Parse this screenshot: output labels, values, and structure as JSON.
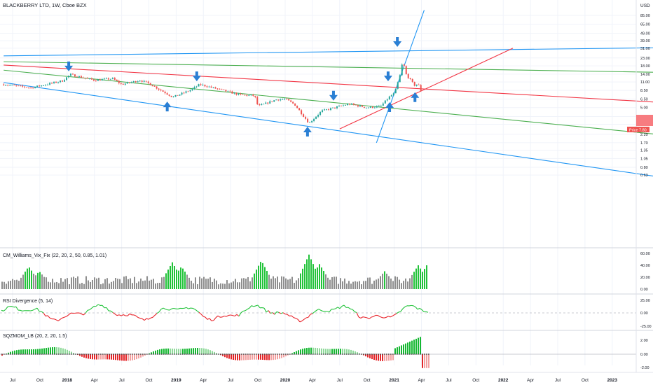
{
  "header": {
    "symbol_title": "BLACKBERRY LTD, 1W, Cboe BZX",
    "currency": "USD"
  },
  "main_pane": {
    "scale": "log",
    "price_ticks": [
      "85.00",
      "65.00",
      "49.00",
      "39.00",
      "31.00",
      "23.00",
      "18.00",
      "14.00",
      "11.00",
      "8.50",
      "6.50",
      "5.00",
      "3.80",
      "3.00",
      "2.20",
      "1.70",
      "1.35",
      "1.05",
      "0.80",
      "0.63"
    ],
    "price_label_text": "Price",
    "price_label_value": "7.80",
    "price_label_color": "#ef5350",
    "last_price_box_color": "#f77c80"
  },
  "x_axis": {
    "labels": [
      "Jul",
      "Oct",
      "2018",
      "Apr",
      "Jul",
      "Oct",
      "2019",
      "Apr",
      "Jul",
      "Oct",
      "2020",
      "Apr",
      "Jul",
      "Oct",
      "2021",
      "Apr",
      "Jul",
      "Oct",
      "2022",
      "Apr",
      "Jul",
      "Oct",
      "2023"
    ],
    "bold_labels": [
      "2018",
      "2019",
      "2020",
      "2021",
      "2022",
      "2023"
    ]
  },
  "indicators": [
    {
      "id": "williams",
      "title": "CM_Williams_Vix_Fix (22, 20, 2, 50, 0.85, 1.01)",
      "ticks": [
        "60.00",
        "40.00",
        "20.00",
        "0.00"
      ]
    },
    {
      "id": "rsi_div",
      "title": "RSI Divergence (5, 14)",
      "ticks": [
        "25.00",
        "0.00",
        "-25.00"
      ]
    },
    {
      "id": "sqzmom",
      "title": "SQZMOM_LB (20, 2, 20, 1.5)",
      "ticks": [
        "2.00",
        "0.00",
        "-2.00"
      ]
    }
  ],
  "colors": {
    "up": "#26a69a",
    "down": "#ef5350",
    "blue_line": "#2196f3",
    "green_line": "#4caf50",
    "red_line": "#f23645",
    "arrow": "#2a7fd4",
    "vix_green": "#22c33a",
    "vix_gray": "#8e8e8e",
    "rsi_green": "#22c33a",
    "rsi_red": "#e8232a",
    "sqz_green_strong": "#16b832",
    "sqz_green_light": "#8fd99a",
    "sqz_red_strong": "#e3262a",
    "sqz_red_light": "#f2a0a0"
  },
  "chart_data": {
    "type": "candlestick",
    "timeframe": "1W",
    "price_checkpoints": [
      {
        "date": "2017-06-01",
        "close": 10.2
      },
      {
        "date": "2017-09-01",
        "close": 9.2
      },
      {
        "date": "2017-12-15",
        "close": 11.4
      },
      {
        "date": "2018-01-10",
        "close": 13.8
      },
      {
        "date": "2018-04-01",
        "close": 11.6
      },
      {
        "date": "2018-06-01",
        "close": 12.2
      },
      {
        "date": "2018-07-01",
        "close": 10.2
      },
      {
        "date": "2018-09-01",
        "close": 11.6
      },
      {
        "date": "2018-10-01",
        "close": 10.5
      },
      {
        "date": "2018-12-20",
        "close": 6.9
      },
      {
        "date": "2019-02-15",
        "close": 8.5
      },
      {
        "date": "2019-03-20",
        "close": 10.2
      },
      {
        "date": "2019-06-01",
        "close": 8.6
      },
      {
        "date": "2019-08-01",
        "close": 7.4
      },
      {
        "date": "2019-09-20",
        "close": 7.2
      },
      {
        "date": "2019-10-01",
        "close": 5.2
      },
      {
        "date": "2019-12-01",
        "close": 6.4
      },
      {
        "date": "2020-01-01",
        "close": 6.5
      },
      {
        "date": "2020-02-01",
        "close": 5.5
      },
      {
        "date": "2020-03-20",
        "close": 3.1
      },
      {
        "date": "2020-05-01",
        "close": 4.5
      },
      {
        "date": "2020-06-15",
        "close": 5.0
      },
      {
        "date": "2020-08-01",
        "close": 5.6
      },
      {
        "date": "2020-10-01",
        "close": 5.0
      },
      {
        "date": "2020-11-15",
        "close": 5.2
      },
      {
        "date": "2020-12-15",
        "close": 7.0
      },
      {
        "date": "2021-01-01",
        "close": 7.8
      },
      {
        "date": "2021-01-20",
        "close": 14.0
      },
      {
        "date": "2021-01-29",
        "close": 22.0
      },
      {
        "date": "2021-02-05",
        "close": 14.5
      },
      {
        "date": "2021-02-26",
        "close": 11.2
      },
      {
        "date": "2021-03-10",
        "close": 9.8
      },
      {
        "date": "2021-03-20",
        "close": 10.5
      },
      {
        "date": "2021-03-31",
        "close": 8.2
      }
    ],
    "trendlines": [
      {
        "color": "blue",
        "from": {
          "date": "2017-06-01",
          "price": 10.8
        },
        "to": {
          "date": "2023-06-01",
          "price": 0.6
        }
      },
      {
        "color": "blue",
        "from": {
          "date": "2017-06-01",
          "price": 24.5
        },
        "to": {
          "date": "2023-06-01",
          "price": 31.5
        }
      },
      {
        "color": "blue",
        "from": {
          "date": "2020-11-01",
          "price": 1.7
        },
        "to": {
          "date": "2021-04-10",
          "price": 100
        }
      },
      {
        "color": "green",
        "from": {
          "date": "2017-06-01",
          "price": 20.5
        },
        "to": {
          "date": "2023-06-01",
          "price": 14.8
        }
      },
      {
        "color": "green",
        "from": {
          "date": "2017-06-01",
          "price": 15.8
        },
        "to": {
          "date": "2023-06-01",
          "price": 2.2
        }
      },
      {
        "color": "red",
        "from": {
          "date": "2017-06-01",
          "price": 18.5
        },
        "to": {
          "date": "2023-06-01",
          "price": 5.9
        }
      },
      {
        "color": "red",
        "from": {
          "date": "2020-07-01",
          "price": 2.6
        },
        "to": {
          "date": "2022-02-01",
          "price": 31.0
        }
      }
    ],
    "arrows": [
      {
        "dir": "down",
        "date": "2018-01-05",
        "price": 17.0
      },
      {
        "dir": "up",
        "date": "2018-12-01",
        "price": 5.4
      },
      {
        "dir": "down",
        "date": "2019-03-10",
        "price": 12.5
      },
      {
        "dir": "up",
        "date": "2020-03-15",
        "price": 2.5
      },
      {
        "dir": "down",
        "date": "2020-06-10",
        "price": 6.9
      },
      {
        "dir": "down",
        "date": "2020-12-10",
        "price": 12.5
      },
      {
        "dir": "up",
        "date": "2020-12-15",
        "price": 5.3
      },
      {
        "dir": "down",
        "date": "2021-01-10",
        "price": 36.0
      },
      {
        "dir": "up",
        "date": "2021-03-10",
        "price": 7.2
      }
    ]
  }
}
